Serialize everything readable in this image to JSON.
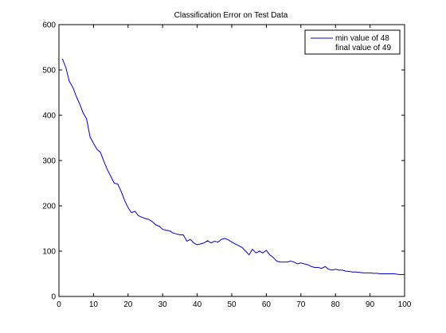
{
  "chart_data": {
    "type": "line",
    "title": "Classification Error on Test Data",
    "xlabel": "",
    "ylabel": "",
    "xlim": [
      0,
      100
    ],
    "ylim": [
      0,
      600
    ],
    "xticks": [
      0,
      10,
      20,
      30,
      40,
      50,
      60,
      70,
      80,
      90,
      100
    ],
    "yticks": [
      0,
      100,
      200,
      300,
      400,
      500,
      600
    ],
    "grid": false,
    "legend": {
      "placement": "top-right",
      "entries": [
        "min value of 48",
        "final value of 49"
      ]
    },
    "series": [
      {
        "color": "#0000cc",
        "x": [
          1,
          2,
          3,
          4,
          5,
          6,
          7,
          8,
          9,
          10,
          11,
          12,
          13,
          14,
          15,
          16,
          17,
          18,
          19,
          20,
          21,
          22,
          23,
          24,
          25,
          26,
          27,
          28,
          29,
          30,
          31,
          32,
          33,
          34,
          35,
          36,
          37,
          38,
          39,
          40,
          41,
          42,
          43,
          44,
          45,
          46,
          47,
          48,
          49,
          50,
          51,
          52,
          53,
          54,
          55,
          56,
          57,
          58,
          59,
          60,
          61,
          62,
          63,
          64,
          65,
          66,
          67,
          68,
          69,
          70,
          71,
          72,
          73,
          74,
          75,
          76,
          77,
          78,
          79,
          80,
          81,
          82,
          83,
          84,
          85,
          86,
          87,
          88,
          89,
          90,
          91,
          92,
          93,
          94,
          95,
          96,
          97,
          98,
          99,
          100
        ],
        "values": [
          525,
          505,
          475,
          462,
          442,
          425,
          405,
          392,
          352,
          338,
          325,
          318,
          298,
          280,
          265,
          250,
          248,
          232,
          212,
          196,
          185,
          188,
          178,
          175,
          172,
          170,
          165,
          158,
          155,
          148,
          146,
          145,
          140,
          138,
          136,
          136,
          122,
          126,
          118,
          114,
          116,
          118,
          123,
          118,
          122,
          120,
          126,
          128,
          125,
          120,
          116,
          112,
          108,
          100,
          92,
          104,
          96,
          100,
          96,
          102,
          92,
          86,
          78,
          76,
          76,
          76,
          78,
          76,
          72,
          74,
          72,
          70,
          66,
          64,
          64,
          62,
          66,
          60,
          58,
          60,
          58,
          58,
          56,
          55,
          54,
          54,
          53,
          52,
          52,
          52,
          51,
          51,
          50,
          50,
          50,
          50,
          50,
          49,
          48,
          49
        ]
      }
    ]
  }
}
